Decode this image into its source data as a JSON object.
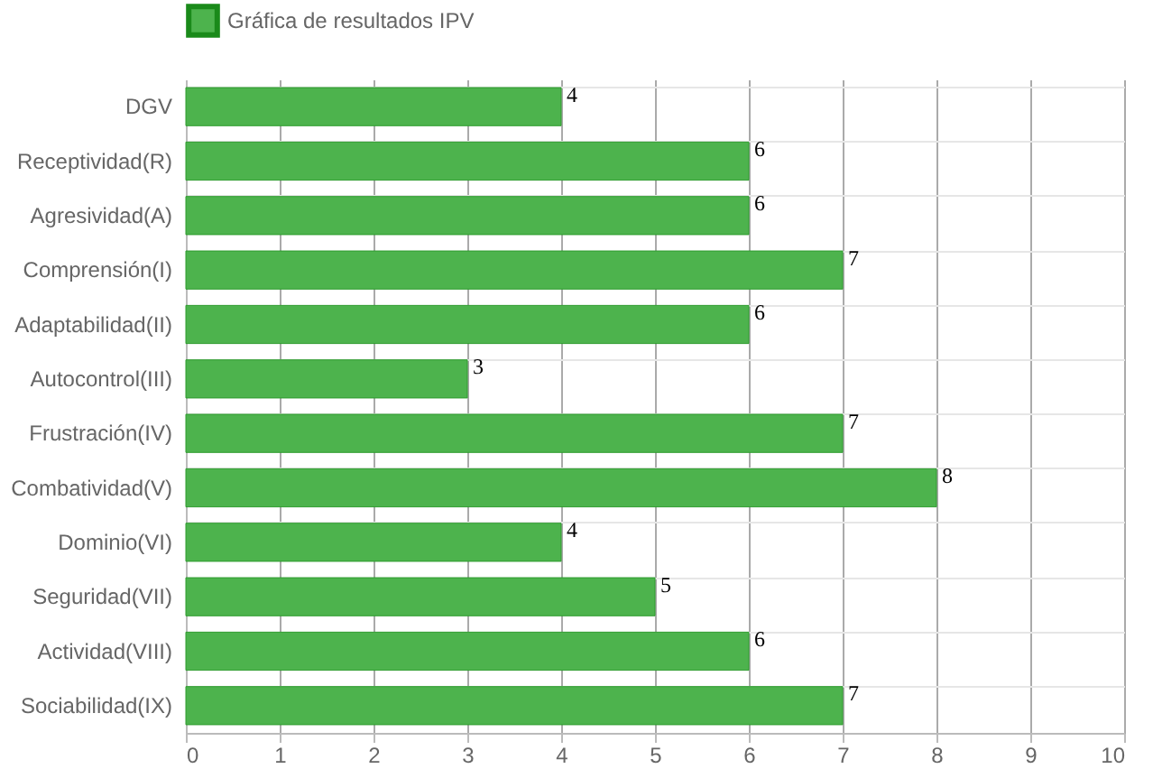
{
  "chart_data": {
    "type": "bar",
    "orientation": "horizontal",
    "categories": [
      "DGV",
      "Receptividad(R)",
      "Agresividad(A)",
      "Comprensión(I)",
      "Adaptabilidad(II)",
      "Autocontrol(III)",
      "Frustración(IV)",
      "Combatividad(V)",
      "Dominio(VI)",
      "Seguridad(VII)",
      "Actividad(VIII)",
      "Sociabilidad(IX)"
    ],
    "series": [
      {
        "name": "Gráfica de resultados IPV",
        "color": "#4db34d",
        "values": [
          4,
          6,
          6,
          7,
          6,
          3,
          7,
          8,
          4,
          5,
          6,
          7
        ]
      }
    ],
    "xlim": [
      0,
      10
    ],
    "xticks": [
      0,
      1,
      2,
      3,
      4,
      5,
      6,
      7,
      8,
      9,
      10
    ],
    "grid": true,
    "legend": "top",
    "data_labels": true
  }
}
